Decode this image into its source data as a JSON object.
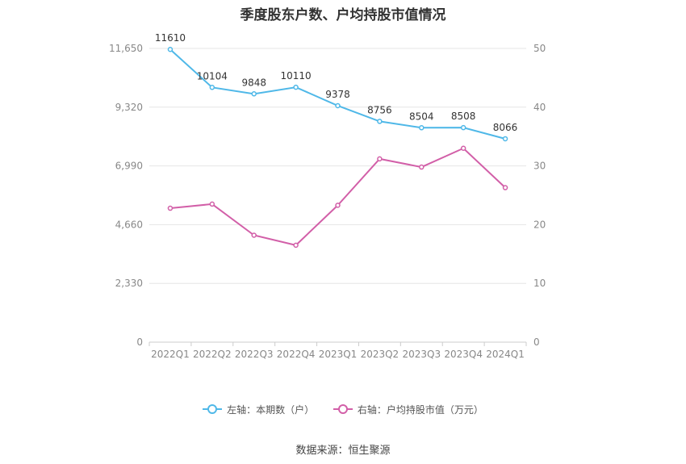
{
  "title": "季度股东户数、户均持股市值情况",
  "source": "数据来源：恒生聚源",
  "colors": {
    "left_series": "#4fb8e8",
    "right_series": "#d25fa8",
    "grid": "#e6e6e6",
    "axis_text": "#888888",
    "label_text": "#333333"
  },
  "legend": {
    "left_label": "左轴：本期数（户）",
    "right_label": "右轴：户均持股市值（万元）"
  },
  "chart_data": {
    "type": "line",
    "title": "季度股东户数、户均持股市值情况",
    "categories": [
      "2022Q1",
      "2022Q2",
      "2022Q3",
      "2022Q4",
      "2023Q1",
      "2023Q2",
      "2023Q3",
      "2023Q4",
      "2024Q1"
    ],
    "left_axis": {
      "min": 0,
      "max": 11650,
      "ticks": [
        0,
        2330,
        4660,
        6990,
        9320,
        11650
      ],
      "tick_labels": [
        "0",
        "2,330",
        "4,660",
        "6,990",
        "9,320",
        "11,650"
      ]
    },
    "right_axis": {
      "min": 0,
      "max": 50,
      "ticks": [
        0,
        10,
        20,
        30,
        40,
        50
      ],
      "tick_labels": [
        "0",
        "10",
        "20",
        "30",
        "40",
        "50"
      ]
    },
    "series": [
      {
        "name": "左轴：本期数（户）",
        "axis": "left",
        "values": [
          11610,
          10104,
          9848,
          10110,
          9378,
          8756,
          8504,
          8508,
          8066
        ],
        "labels": [
          "11610",
          "10104",
          "9848",
          "10110",
          "9378",
          "8756",
          "8504",
          "8508",
          "8066"
        ]
      },
      {
        "name": "右轴：户均持股市值（万元）",
        "axis": "right",
        "values": [
          22.8,
          23.5,
          18.2,
          16.5,
          23.3,
          31.2,
          29.8,
          33.0,
          26.3
        ]
      }
    ],
    "grid": true,
    "legend_position": "bottom"
  }
}
